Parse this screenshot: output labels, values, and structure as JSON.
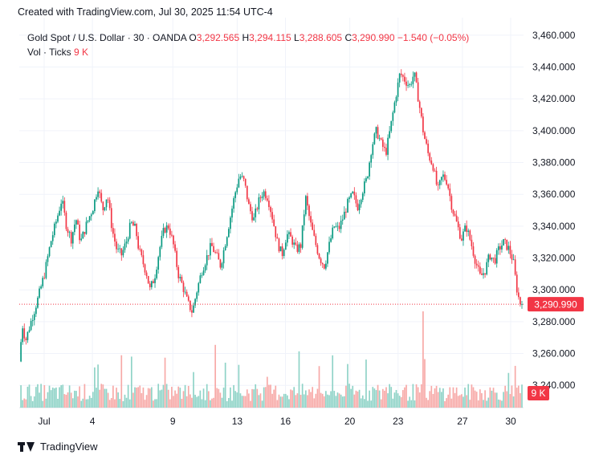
{
  "header": {
    "title": "Created with TradingView.com, Jul 30, 2025 11:54 UTC-4"
  },
  "legend": {
    "symbol": "Gold Spot / U.S. Dollar · 30 · OANDA",
    "open_label": "O",
    "open": "3,292.565",
    "high_label": "H",
    "high": "3,294.115",
    "low_label": "L",
    "low": "3,288.605",
    "close_label": "C",
    "close": "3,290.990",
    "change": "−1.540 (−0.05%)",
    "vol_label": "Vol · Ticks",
    "vol_value": "9 K"
  },
  "footer": {
    "brand": "TradingView",
    "logo_icon": "tradingview-logo-icon"
  },
  "colors": {
    "up": "#089981",
    "down": "#f23645",
    "up_vol": "#8fd3c7",
    "down_vol": "#f7a9a7",
    "grid": "#f0f3fa",
    "axis_text": "#131722"
  },
  "chart_data": {
    "type": "candlestick",
    "interval": "30 min",
    "y_ticks": [
      "3,460.000",
      "3,440.000",
      "3,420.000",
      "3,400.000",
      "3,380.000",
      "3,360.000",
      "3,340.000",
      "3,320.000",
      "3,300.000",
      "3,280.000",
      "3,260.000",
      "3,240.000"
    ],
    "y_tick_values": [
      3460,
      3440,
      3420,
      3400,
      3380,
      3360,
      3340,
      3320,
      3300,
      3280,
      3260,
      3240
    ],
    "ylim": [
      3226,
      3471
    ],
    "x_ticks": [
      "Jul",
      "4",
      "9",
      "13",
      "16",
      "20",
      "23",
      "27",
      "30"
    ],
    "x_tick_days": [
      1,
      4,
      9,
      13,
      16,
      20,
      23,
      27,
      30
    ],
    "last_price": 3290.99,
    "last_price_label": "3,290.990",
    "volume_label": "9 K",
    "price_path": [
      [
        0.0,
        3255
      ],
      [
        0.2,
        3278
      ],
      [
        0.4,
        3268
      ],
      [
        0.8,
        3282
      ],
      [
        1.2,
        3295
      ],
      [
        1.6,
        3310
      ],
      [
        2.0,
        3330
      ],
      [
        2.4,
        3345
      ],
      [
        2.7,
        3357
      ],
      [
        3.0,
        3340
      ],
      [
        3.3,
        3332
      ],
      [
        3.6,
        3345
      ],
      [
        3.9,
        3330
      ],
      [
        4.3,
        3342
      ],
      [
        4.7,
        3352
      ],
      [
        5.0,
        3365
      ],
      [
        5.3,
        3350
      ],
      [
        5.6,
        3360
      ],
      [
        5.9,
        3338
      ],
      [
        6.2,
        3325
      ],
      [
        6.5,
        3322
      ],
      [
        6.8,
        3330
      ],
      [
        7.1,
        3342
      ],
      [
        7.4,
        3338
      ],
      [
        7.6,
        3325
      ],
      [
        7.9,
        3316
      ],
      [
        8.1,
        3310
      ],
      [
        8.3,
        3300
      ],
      [
        8.6,
        3308
      ],
      [
        8.9,
        3325
      ],
      [
        9.2,
        3338
      ],
      [
        9.5,
        3340
      ],
      [
        9.8,
        3328
      ],
      [
        10.1,
        3310
      ],
      [
        10.4,
        3302
      ],
      [
        10.7,
        3292
      ],
      [
        11.0,
        3286
      ],
      [
        11.3,
        3300
      ],
      [
        11.6,
        3312
      ],
      [
        11.9,
        3320
      ],
      [
        12.2,
        3328
      ],
      [
        12.5,
        3322
      ],
      [
        12.8,
        3315
      ],
      [
        13.1,
        3330
      ],
      [
        13.4,
        3345
      ],
      [
        13.7,
        3360
      ],
      [
        14.0,
        3372
      ],
      [
        14.3,
        3368
      ],
      [
        14.6,
        3352
      ],
      [
        14.9,
        3344
      ],
      [
        15.2,
        3355
      ],
      [
        15.5,
        3362
      ],
      [
        15.8,
        3358
      ],
      [
        16.1,
        3345
      ],
      [
        16.4,
        3330
      ],
      [
        16.7,
        3322
      ],
      [
        17.0,
        3335
      ],
      [
        17.3,
        3332
      ],
      [
        17.6,
        3325
      ],
      [
        17.9,
        3328
      ],
      [
        18.2,
        3358
      ],
      [
        18.5,
        3342
      ],
      [
        18.8,
        3330
      ],
      [
        19.1,
        3320
      ],
      [
        19.4,
        3315
      ],
      [
        19.7,
        3328
      ],
      [
        20.0,
        3340
      ],
      [
        20.3,
        3338
      ],
      [
        20.6,
        3346
      ],
      [
        20.9,
        3355
      ],
      [
        21.2,
        3360
      ],
      [
        21.5,
        3352
      ],
      [
        21.8,
        3362
      ],
      [
        22.1,
        3370
      ],
      [
        22.4,
        3390
      ],
      [
        22.7,
        3400
      ],
      [
        23.0,
        3392
      ],
      [
        23.3,
        3386
      ],
      [
        23.6,
        3402
      ],
      [
        23.9,
        3420
      ],
      [
        24.2,
        3436
      ],
      [
        24.5,
        3432
      ],
      [
        24.8,
        3428
      ],
      [
        25.1,
        3436
      ],
      [
        25.4,
        3418
      ],
      [
        25.7,
        3398
      ],
      [
        26.0,
        3385
      ],
      [
        26.3,
        3378
      ],
      [
        26.6,
        3362
      ],
      [
        26.9,
        3372
      ],
      [
        27.2,
        3368
      ],
      [
        27.5,
        3352
      ],
      [
        27.8,
        3342
      ],
      [
        28.1,
        3332
      ],
      [
        28.4,
        3340
      ],
      [
        28.7,
        3330
      ],
      [
        29.0,
        3318
      ],
      [
        29.3,
        3308
      ],
      [
        29.6,
        3312
      ],
      [
        29.9,
        3322
      ],
      [
        30.2,
        3318
      ],
      [
        30.5,
        3326
      ],
      [
        30.8,
        3330
      ],
      [
        31.1,
        3326
      ],
      [
        31.4,
        3318
      ],
      [
        31.6,
        3302
      ],
      [
        31.8,
        3292
      ],
      [
        31.95,
        3290.99
      ]
    ]
  }
}
